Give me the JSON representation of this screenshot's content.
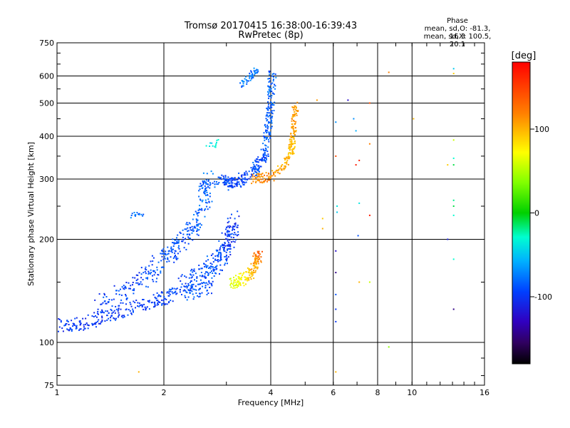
{
  "header": {
    "title": "Tromsø 20170415 16:38:00-16:39:43",
    "subtitle": "RwPretec (8p)",
    "phase_heading": "Phase",
    "phase_stat_o": "mean, sd,O: -81.3, 16.3",
    "phase_stat_x": "mean, sd,X: 100.5, 20.1"
  },
  "chart_data": {
    "type": "scatter",
    "xlabel": "Frequency [MHz]",
    "ylabel": "Stationary phase Virtual Height [km]",
    "xscale": "log",
    "yscale": "log",
    "xlim": [
      1,
      16
    ],
    "ylim": [
      75,
      750
    ],
    "xticks": [
      1,
      2,
      4,
      6,
      8,
      10,
      16
    ],
    "xtick_labels": [
      "1",
      "2",
      "4",
      "6",
      "8",
      "10",
      "16"
    ],
    "yticks": [
      75,
      100,
      200,
      300,
      400,
      500,
      600,
      750
    ],
    "ytick_labels": [
      "75",
      "100",
      "200",
      "300",
      "400",
      "500",
      "600",
      "750"
    ],
    "grid": true,
    "colorbar": {
      "label": "[deg]",
      "range": [
        -180,
        180
      ],
      "ticks": [
        100,
        0,
        -100
      ],
      "tick_labels": [
        "100",
        "0",
        "-100"
      ]
    },
    "series": [
      {
        "ridge": [
          [
            1.0,
            112,
            -100
          ],
          [
            1.2,
            114,
            -100
          ],
          [
            1.45,
            122,
            -100
          ],
          [
            1.7,
            128,
            -95
          ],
          [
            1.9,
            133,
            -95
          ],
          [
            2.1,
            137,
            -95
          ],
          [
            2.4,
            140,
            -90
          ],
          [
            2.7,
            145,
            -90
          ]
        ],
        "spread": 0.06,
        "count": 300
      },
      {
        "ridge": [
          [
            1.3,
            128,
            -95
          ],
          [
            1.55,
            140,
            -95
          ],
          [
            1.75,
            152,
            -95
          ],
          [
            1.95,
            170,
            -90
          ],
          [
            2.1,
            185,
            -90
          ],
          [
            2.3,
            200,
            -90
          ],
          [
            2.5,
            225,
            -85
          ],
          [
            2.6,
            260,
            -85
          ],
          [
            2.7,
            300,
            -80
          ]
        ],
        "spread": 0.08,
        "count": 320
      },
      {
        "ridge": [
          [
            2.2,
            145,
            -95
          ],
          [
            2.6,
            160,
            -90
          ],
          [
            2.9,
            175,
            -90
          ],
          [
            3.05,
            200,
            -100
          ],
          [
            3.15,
            230,
            -100
          ]
        ],
        "spread": 0.08,
        "count": 260
      },
      {
        "ridge": [
          [
            3.0,
            288,
            -95
          ],
          [
            3.3,
            298,
            -95
          ],
          [
            3.6,
            318,
            -90
          ],
          [
            3.85,
            350,
            -90
          ],
          [
            3.95,
            420,
            -85
          ],
          [
            4.0,
            520,
            -85
          ],
          [
            4.05,
            620,
            -85
          ]
        ],
        "spread": 0.05,
        "count": 300
      },
      {
        "ridge": [
          [
            2.5,
            285,
            -90
          ],
          [
            2.9,
            300,
            -90
          ],
          [
            3.2,
            292,
            -100
          ]
        ],
        "spread": 0.04,
        "count": 80
      },
      {
        "ridge": [
          [
            3.55,
            300,
            130
          ],
          [
            4.0,
            305,
            125
          ],
          [
            4.4,
            330,
            110
          ],
          [
            4.6,
            370,
            105
          ],
          [
            4.65,
            430,
            120
          ],
          [
            4.7,
            490,
            120
          ]
        ],
        "spread": 0.04,
        "count": 220
      },
      {
        "ridge": [
          [
            3.1,
            148,
            70
          ],
          [
            3.3,
            152,
            80
          ],
          [
            3.5,
            158,
            100
          ],
          [
            3.65,
            172,
            120
          ],
          [
            3.7,
            180,
            140
          ]
        ],
        "spread": 0.05,
        "count": 150
      },
      {
        "ridge": [
          [
            3.3,
            560,
            -80
          ],
          [
            3.5,
            600,
            -80
          ],
          [
            3.65,
            625,
            -75
          ]
        ],
        "spread": 0.03,
        "count": 50
      },
      {
        "ridge": [
          [
            1.62,
            235,
            -80
          ],
          [
            1.75,
            238,
            -80
          ]
        ],
        "spread": 0.02,
        "count": 15
      },
      {
        "ridge": [
          [
            2.6,
            370,
            -40
          ],
          [
            2.85,
            385,
            -40
          ]
        ],
        "spread": 0.03,
        "count": 12
      }
    ],
    "isolated_points": [
      [
        1.7,
        82,
        110
      ],
      [
        5.6,
        230,
        100
      ],
      [
        5.6,
        215,
        110
      ],
      [
        5.4,
        510,
        120
      ],
      [
        6.1,
        440,
        -70
      ],
      [
        6.1,
        350,
        150
      ],
      [
        6.15,
        250,
        -40
      ],
      [
        6.15,
        240,
        -50
      ],
      [
        6.1,
        185,
        -120
      ],
      [
        6.1,
        160,
        -140
      ],
      [
        6.1,
        138,
        -90
      ],
      [
        6.1,
        125,
        -100
      ],
      [
        6.1,
        115,
        -100
      ],
      [
        6.1,
        82,
        110
      ],
      [
        6.6,
        510,
        -120
      ],
      [
        6.85,
        450,
        -70
      ],
      [
        6.95,
        415,
        -60
      ],
      [
        6.95,
        330,
        170
      ],
      [
        7.1,
        340,
        170
      ],
      [
        7.1,
        255,
        -40
      ],
      [
        7.05,
        205,
        -90
      ],
      [
        7.1,
        150,
        110
      ],
      [
        7.6,
        500,
        150
      ],
      [
        7.6,
        380,
        130
      ],
      [
        7.6,
        235,
        170
      ],
      [
        7.6,
        150,
        60
      ],
      [
        8.6,
        615,
        130
      ],
      [
        8.6,
        97,
        40
      ],
      [
        10.1,
        450,
        110
      ],
      [
        12.6,
        330,
        100
      ],
      [
        12.6,
        200,
        -110
      ],
      [
        13.1,
        630,
        -50
      ],
      [
        13.1,
        610,
        100
      ],
      [
        13.1,
        390,
        60
      ],
      [
        13.1,
        345,
        -30
      ],
      [
        13.1,
        330,
        -10
      ],
      [
        13.1,
        260,
        -20
      ],
      [
        13.1,
        250,
        -10
      ],
      [
        13.1,
        235,
        -30
      ],
      [
        13.1,
        175,
        -30
      ],
      [
        13.1,
        125,
        -140
      ]
    ]
  }
}
